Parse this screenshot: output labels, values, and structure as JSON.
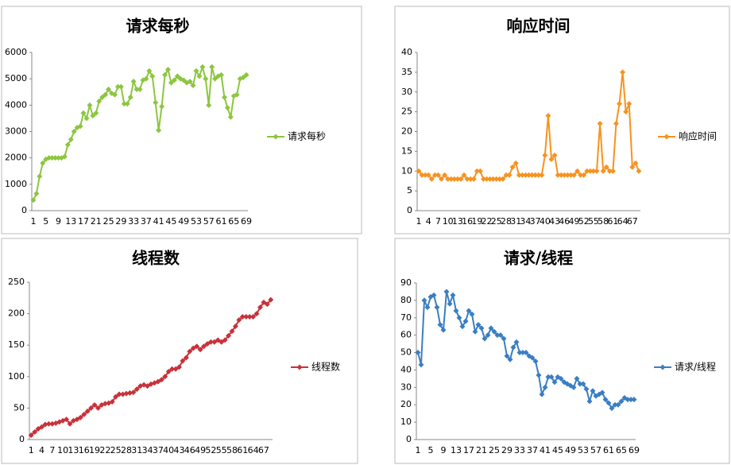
{
  "chart_data": [
    {
      "type": "line",
      "title": "请求每秒",
      "categories": [
        "1",
        null,
        null,
        null,
        "5",
        null,
        null,
        null,
        "9",
        null,
        null,
        null,
        "13",
        null,
        null,
        null,
        "17",
        null,
        null,
        null,
        "21",
        null,
        null,
        null,
        "25",
        null,
        null,
        null,
        "29",
        null,
        null,
        null,
        "33",
        null,
        null,
        null,
        "37",
        null,
        null,
        null,
        "41",
        null,
        null,
        null,
        "45",
        null,
        null,
        null,
        "49",
        null,
        null,
        null,
        "53",
        null,
        null,
        null,
        "57",
        null,
        null,
        null,
        "61",
        null,
        null,
        null,
        "65",
        null,
        null,
        null,
        "69"
      ],
      "series": [
        {
          "name": "请求每秒",
          "color": "#8cc63e",
          "values": [
            400,
            650,
            1300,
            1800,
            1950,
            2000,
            2000,
            2000,
            2000,
            2000,
            2050,
            2500,
            2700,
            3000,
            3150,
            3200,
            3700,
            3500,
            4000,
            3600,
            3700,
            4150,
            4300,
            4400,
            4600,
            4450,
            4400,
            4700,
            4700,
            4050,
            4050,
            4300,
            4900,
            4600,
            4600,
            4950,
            5000,
            5300,
            5100,
            4100,
            3050,
            3950,
            5150,
            5350,
            4850,
            4950,
            5100,
            5000,
            4950,
            4850,
            4900,
            4750,
            5300,
            5100,
            5450,
            5000,
            4000,
            5450,
            5000,
            5100,
            5150,
            4300,
            3900,
            3550,
            4350,
            4400,
            5000,
            5050,
            5150
          ]
        }
      ],
      "ylim": [
        0,
        6000
      ],
      "yticks": [
        0,
        1000,
        2000,
        3000,
        4000,
        5000,
        6000
      ]
    },
    {
      "type": "line",
      "title": "响应时间",
      "categories": [
        "1",
        null,
        null,
        "4",
        null,
        null,
        "7",
        null,
        null,
        "10",
        null,
        null,
        "13",
        null,
        null,
        "16",
        null,
        null,
        "19",
        null,
        null,
        "22",
        null,
        null,
        "25",
        null,
        null,
        "28",
        null,
        null,
        "31",
        null,
        null,
        "34",
        null,
        null,
        "37",
        null,
        null,
        "40",
        null,
        null,
        "43",
        null,
        null,
        "46",
        null,
        null,
        "49",
        null,
        null,
        "52",
        null,
        null,
        "55",
        null,
        null,
        "58",
        null,
        null,
        "61",
        null,
        null,
        "64",
        null,
        null,
        "67",
        null,
        null
      ],
      "series": [
        {
          "name": "响应时间",
          "color": "#f7931e",
          "values": [
            10,
            9,
            9,
            9,
            8,
            9,
            9,
            8,
            9,
            8,
            8,
            8,
            8,
            8,
            9,
            8,
            8,
            8,
            10,
            10,
            8,
            8,
            8,
            8,
            8,
            8,
            8,
            9,
            9,
            11,
            12,
            9,
            9,
            9,
            9,
            9,
            9,
            9,
            9,
            14,
            24,
            13,
            14,
            9,
            9,
            9,
            9,
            9,
            9,
            10,
            9,
            9,
            10,
            10,
            10,
            10,
            22,
            10,
            11,
            10,
            10,
            22,
            27,
            35,
            25,
            27,
            11,
            12,
            10
          ]
        }
      ],
      "ylim": [
        0,
        40
      ],
      "yticks": [
        0,
        5,
        10,
        15,
        20,
        25,
        30,
        35,
        40
      ]
    },
    {
      "type": "line",
      "title": "线程数",
      "categories": [
        "1",
        null,
        null,
        "4",
        null,
        null,
        "7",
        null,
        null,
        "10",
        null,
        null,
        "13",
        null,
        null,
        "16",
        null,
        null,
        "19",
        null,
        null,
        "22",
        null,
        null,
        "25",
        null,
        null,
        "28",
        null,
        null,
        "31",
        null,
        null,
        "34",
        null,
        null,
        "37",
        null,
        null,
        "40",
        null,
        null,
        "43",
        null,
        null,
        "46",
        null,
        null,
        "49",
        null,
        null,
        "52",
        null,
        null,
        "55",
        null,
        null,
        "58",
        null,
        null,
        "61",
        null,
        null,
        "64",
        null,
        null,
        "67",
        null,
        null
      ],
      "series": [
        {
          "name": "线程数",
          "color": "#c8323a",
          "values": [
            7,
            12,
            17,
            20,
            24,
            25,
            25,
            26,
            28,
            30,
            32,
            25,
            30,
            32,
            35,
            40,
            45,
            50,
            55,
            50,
            55,
            57,
            58,
            60,
            68,
            72,
            72,
            73,
            74,
            75,
            80,
            85,
            87,
            85,
            88,
            90,
            92,
            95,
            100,
            108,
            112,
            112,
            115,
            125,
            130,
            140,
            145,
            148,
            143,
            148,
            152,
            155,
            155,
            158,
            155,
            158,
            165,
            172,
            180,
            190,
            195,
            195,
            195,
            195,
            200,
            210,
            218,
            215,
            222
          ]
        }
      ],
      "ylim": [
        0,
        250
      ],
      "yticks": [
        0,
        50,
        100,
        150,
        200,
        250
      ]
    },
    {
      "type": "line",
      "title": "请求/线程",
      "categories": [
        "1",
        null,
        null,
        null,
        "5",
        null,
        null,
        null,
        "9",
        null,
        null,
        null,
        "13",
        null,
        null,
        null,
        "17",
        null,
        null,
        null,
        "21",
        null,
        null,
        null,
        "25",
        null,
        null,
        null,
        "29",
        null,
        null,
        null,
        "33",
        null,
        null,
        null,
        "37",
        null,
        null,
        null,
        "41",
        null,
        null,
        null,
        "45",
        null,
        null,
        null,
        "49",
        null,
        null,
        null,
        "53",
        null,
        null,
        null,
        "57",
        null,
        null,
        null,
        "61",
        null,
        null,
        null,
        "65",
        null,
        null,
        null,
        "69"
      ],
      "series": [
        {
          "name": "请求/线程",
          "color": "#3a7ec2",
          "values": [
            50,
            43,
            80,
            76,
            82,
            83,
            76,
            66,
            63,
            85,
            78,
            83,
            74,
            70,
            65,
            68,
            74,
            72,
            62,
            66,
            64,
            58,
            60,
            64,
            62,
            60,
            60,
            58,
            48,
            46,
            53,
            56,
            50,
            50,
            50,
            48,
            47,
            45,
            37,
            26,
            30,
            36,
            36,
            33,
            36,
            35,
            33,
            32,
            31,
            30,
            35,
            32,
            32,
            29,
            22,
            28,
            25,
            26,
            27,
            23,
            21,
            18,
            20,
            20,
            22,
            24,
            23,
            23,
            23
          ]
        }
      ],
      "ylim": [
        0,
        90
      ],
      "yticks": [
        0,
        10,
        20,
        30,
        40,
        50,
        60,
        70,
        80,
        90
      ]
    }
  ]
}
